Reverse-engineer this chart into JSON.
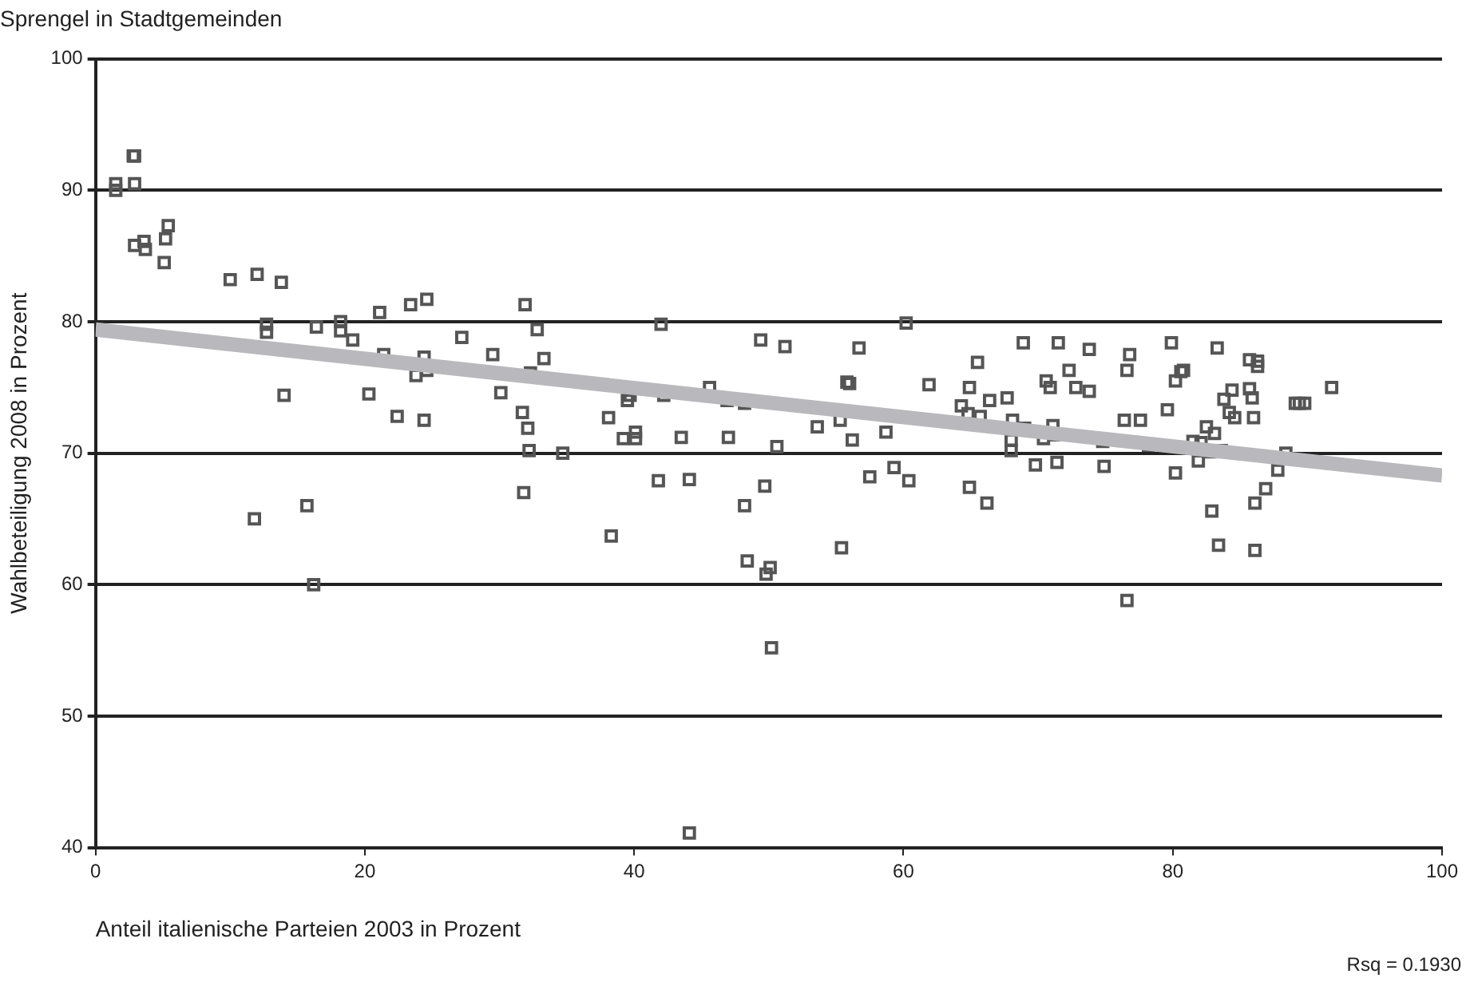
{
  "chart_data": {
    "type": "scatter",
    "title": "Sprengel in Stadtgemeinden",
    "xlabel": "Anteil italienische Parteien 2003 in Prozent",
    "ylabel": "Wahlbeteiligung 2008 in Prozent",
    "xlim": [
      0,
      100
    ],
    "xticks": [
      0,
      20,
      40,
      60,
      80,
      100
    ],
    "ylim": [
      40,
      100
    ],
    "yticks": [
      40,
      50,
      60,
      70,
      80,
      90,
      100
    ],
    "grid": "y",
    "legend": false,
    "annotations": [
      "Rsq = 0.1930"
    ],
    "series": [
      {
        "type": "line",
        "color": "#b9b9bd",
        "marker": "none",
        "x": [
          0,
          100
        ],
        "values": [
          79.4,
          68.3
        ]
      },
      {
        "color": "#555555",
        "marker": "square",
        "x": [
          1.5,
          1.5,
          2.8,
          2.9,
          2.9,
          2.9,
          3.6,
          3.7,
          5.1,
          5.2,
          5.4,
          10,
          12,
          13.8,
          12.7,
          12.7,
          11.8,
          14,
          15.7,
          16.2,
          16.4,
          18.2,
          18.2,
          19.1,
          20.3,
          21.1,
          21.4,
          22.4,
          23.4,
          23.8,
          24.6,
          24.4,
          24.6,
          24.4,
          27.2,
          29.5,
          30.1,
          31.7,
          31.8,
          31.9,
          32.1,
          32.2,
          32.3,
          32.8,
          33.3,
          34.7,
          38.1,
          38.3,
          39.2,
          39.5,
          39.7,
          40.1,
          40.1,
          41.8,
          42,
          42.2,
          43.5,
          44.1,
          44.1,
          45.6,
          46.9,
          47,
          48.2,
          48.2,
          48.4,
          49.4,
          49.7,
          49.8,
          50.1,
          50.2,
          50.6,
          51.2,
          53.6,
          55.3,
          55.4,
          55.8,
          56,
          56.2,
          56.7,
          57.5,
          58.7,
          59.3,
          60.2,
          60.4,
          61.9,
          64.3,
          64.8,
          64.9,
          64.9,
          65.5,
          65.7,
          66.2,
          66.4,
          67.7,
          68,
          68,
          68.1,
          68.9,
          69,
          69.8,
          70.4,
          70.6,
          70.9,
          71.1,
          71.2,
          71.4,
          71.5,
          72.3,
          72.8,
          73.8,
          73.8,
          74.8,
          74.9,
          76.4,
          76.6,
          76.8,
          76.6,
          77.6,
          78.2,
          79.6,
          79.9,
          80.2,
          80.2,
          80.6,
          80.8,
          81.5,
          81.9,
          82.1,
          82.5,
          82.8,
          82.9,
          83.1,
          83.3,
          83.4,
          83.6,
          83.8,
          84.2,
          84.4,
          84.6,
          85.7,
          85.7,
          85.9,
          86,
          86.1,
          86.1,
          86.3,
          86.3,
          86.9,
          87.8,
          88.4,
          89.1,
          89.4,
          89.8,
          91.8
        ],
        "values": [
          90.5,
          90,
          92.6,
          92.6,
          90.5,
          85.8,
          86.1,
          85.5,
          84.5,
          86.3,
          87.3,
          83.2,
          83.6,
          83,
          79.8,
          79.2,
          65,
          74.4,
          66,
          60,
          79.6,
          80,
          79.3,
          78.6,
          74.5,
          80.7,
          77.5,
          72.8,
          81.3,
          75.9,
          81.7,
          77.3,
          76.3,
          72.5,
          78.8,
          77.5,
          74.6,
          73.1,
          67,
          81.3,
          71.9,
          70.2,
          76.1,
          79.4,
          77.2,
          70,
          72.7,
          63.7,
          71.1,
          74,
          74.4,
          71.6,
          71.1,
          67.9,
          79.8,
          74.4,
          71.2,
          68,
          41.1,
          75,
          74,
          71.2,
          73.8,
          66,
          61.8,
          78.6,
          67.5,
          60.8,
          61.3,
          55.2,
          70.5,
          78.1,
          72,
          72.5,
          62.8,
          75.4,
          75.3,
          71,
          78,
          68.2,
          71.6,
          68.9,
          79.9,
          67.9,
          75.2,
          73.6,
          73,
          75,
          67.4,
          76.9,
          72.8,
          66.2,
          74,
          74.2,
          70.2,
          71,
          72.5,
          78.4,
          71.9,
          69.1,
          71.1,
          75.5,
          75,
          72.1,
          71.4,
          69.3,
          78.4,
          76.3,
          75,
          77.9,
          74.7,
          70.9,
          69,
          72.5,
          76.3,
          77.5,
          58.8,
          72.5,
          70.6,
          73.3,
          78.4,
          75.5,
          68.5,
          76.2,
          76.3,
          70.9,
          69.4,
          70.8,
          72,
          70.1,
          65.6,
          71.5,
          78,
          63,
          70.2,
          74.1,
          73.1,
          74.8,
          72.7,
          77.1,
          74.9,
          74.2,
          72.7,
          66.2,
          62.6,
          76.6,
          77,
          67.3,
          68.7,
          70,
          73.8,
          73.8,
          73.8,
          75
        ]
      }
    ]
  }
}
